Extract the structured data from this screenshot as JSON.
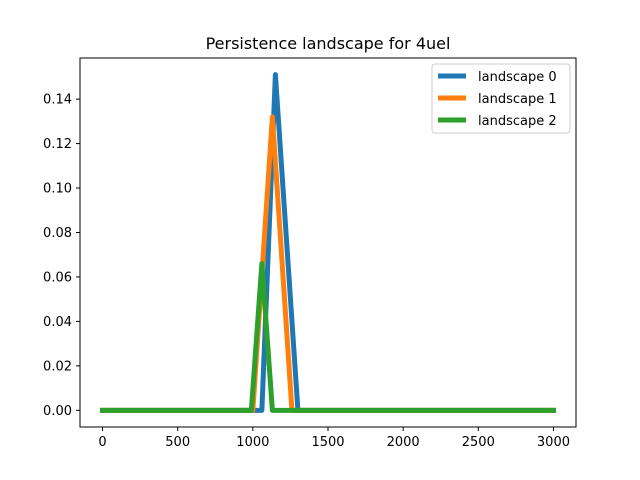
{
  "chart_data": {
    "type": "line",
    "title": "Persistence landscape for 4uel",
    "xlabel": "",
    "ylabel": "",
    "xlim": [
      -150,
      3150
    ],
    "ylim": [
      -0.0075,
      0.1585
    ],
    "xticks": [
      0,
      500,
      1000,
      1500,
      2000,
      2500,
      3000
    ],
    "yticks": [
      0.0,
      0.02,
      0.04,
      0.06,
      0.08,
      0.1,
      0.12,
      0.14
    ],
    "xtick_labels": [
      "0",
      "500",
      "1000",
      "1500",
      "2000",
      "2500",
      "3000"
    ],
    "ytick_labels": [
      "0.00",
      "0.02",
      "0.04",
      "0.06",
      "0.08",
      "0.10",
      "0.12",
      "0.14"
    ],
    "grid": false,
    "legend_position": "top-right",
    "series": [
      {
        "name": "landscape 0",
        "color": "#1f77b4",
        "points": [
          [
            0,
            0
          ],
          [
            1060,
            0
          ],
          [
            1150,
            0.151
          ],
          [
            1300,
            0
          ],
          [
            3000,
            0
          ]
        ]
      },
      {
        "name": "landscape 1",
        "color": "#ff7f0e",
        "points": [
          [
            0,
            0
          ],
          [
            1000,
            0
          ],
          [
            1130,
            0.132
          ],
          [
            1260,
            0
          ],
          [
            3000,
            0
          ]
        ]
      },
      {
        "name": "landscape 2",
        "color": "#2ca02c",
        "points": [
          [
            0,
            0
          ],
          [
            990,
            0
          ],
          [
            1060,
            0.066
          ],
          [
            1130,
            0
          ],
          [
            3000,
            0
          ]
        ]
      }
    ]
  }
}
